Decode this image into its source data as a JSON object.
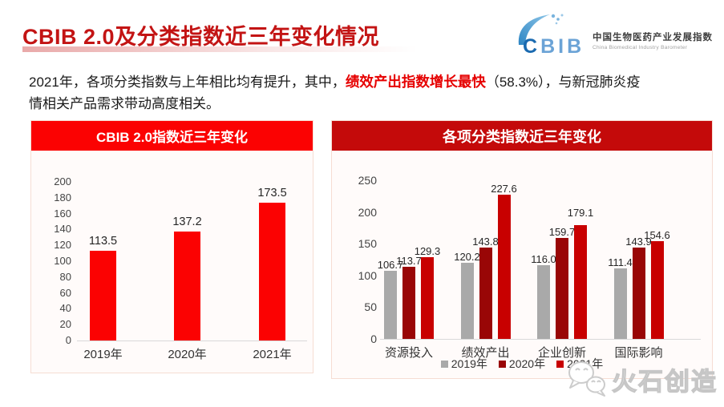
{
  "colors": {
    "title_red": "#c31414",
    "highlight_red": "#e60000",
    "banner_left": "#fb0202",
    "banner_right": "#c40a0a",
    "bar_bright_red": "#fb0202",
    "bar_gray_2019": "#a9a9a9",
    "bar_dark_red_2020": "#990606",
    "bar_red_2021": "#c80000",
    "axis_line": "#d9d9d9",
    "logo_blue_dark": "#1a6ab0",
    "logo_blue_light": "#6ba3d6"
  },
  "header": {
    "title": "CBIB 2.0及分类指数近三年变化情况",
    "logo": {
      "wordmark_first": "C",
      "wordmark_rest": "BIB",
      "name_cn": "中国生物医药产业发展指数",
      "name_en": "China Biomedical Industry Barometer"
    }
  },
  "paragraph": {
    "line1_pre": "2021年，各项分类指数与上年相比均有提升，其中，",
    "highlight": "绩效产出指数增长最快",
    "line1_post": "（58.3%），与新冠肺炎疫",
    "line2": "情相关产品需求带动高度相关。"
  },
  "watermark": {
    "text": "火石创造",
    "icon": "wechat-bubbles-icon"
  },
  "chart_data": [
    {
      "type": "bar",
      "title": "CBIB 2.0指数近三年变化",
      "categories": [
        "2019年",
        "2020年",
        "2021年"
      ],
      "values": [
        113.5,
        137.2,
        173.5
      ],
      "bar_color": "#fb0202",
      "ylim": [
        0,
        200
      ],
      "yticks": [
        0,
        20,
        40,
        60,
        80,
        100,
        120,
        140,
        160,
        180,
        200
      ],
      "grid": false,
      "legend_position": "none",
      "xlabel": "",
      "ylabel": ""
    },
    {
      "type": "bar",
      "title": "各项分类指数近三年变化",
      "categories": [
        "资源投入",
        "绩效产出",
        "企业创新",
        "国际影响"
      ],
      "series": [
        {
          "name": "2019年",
          "color": "#a9a9a9",
          "values": [
            106.7,
            120.2,
            116.0,
            111.4
          ]
        },
        {
          "name": "2020年",
          "color": "#990606",
          "values": [
            113.7,
            143.8,
            159.7,
            143.9
          ]
        },
        {
          "name": "2021年",
          "color": "#c80000",
          "values": [
            129.3,
            227.6,
            179.1,
            154.6
          ],
          "label_dy": [
            0,
            0,
            -8,
            0
          ]
        }
      ],
      "ylim": [
        0,
        250
      ],
      "yticks": [
        0,
        50,
        100,
        150,
        200,
        250
      ],
      "grid": false,
      "legend_position": "bottom",
      "xlabel": "",
      "ylabel": ""
    }
  ]
}
